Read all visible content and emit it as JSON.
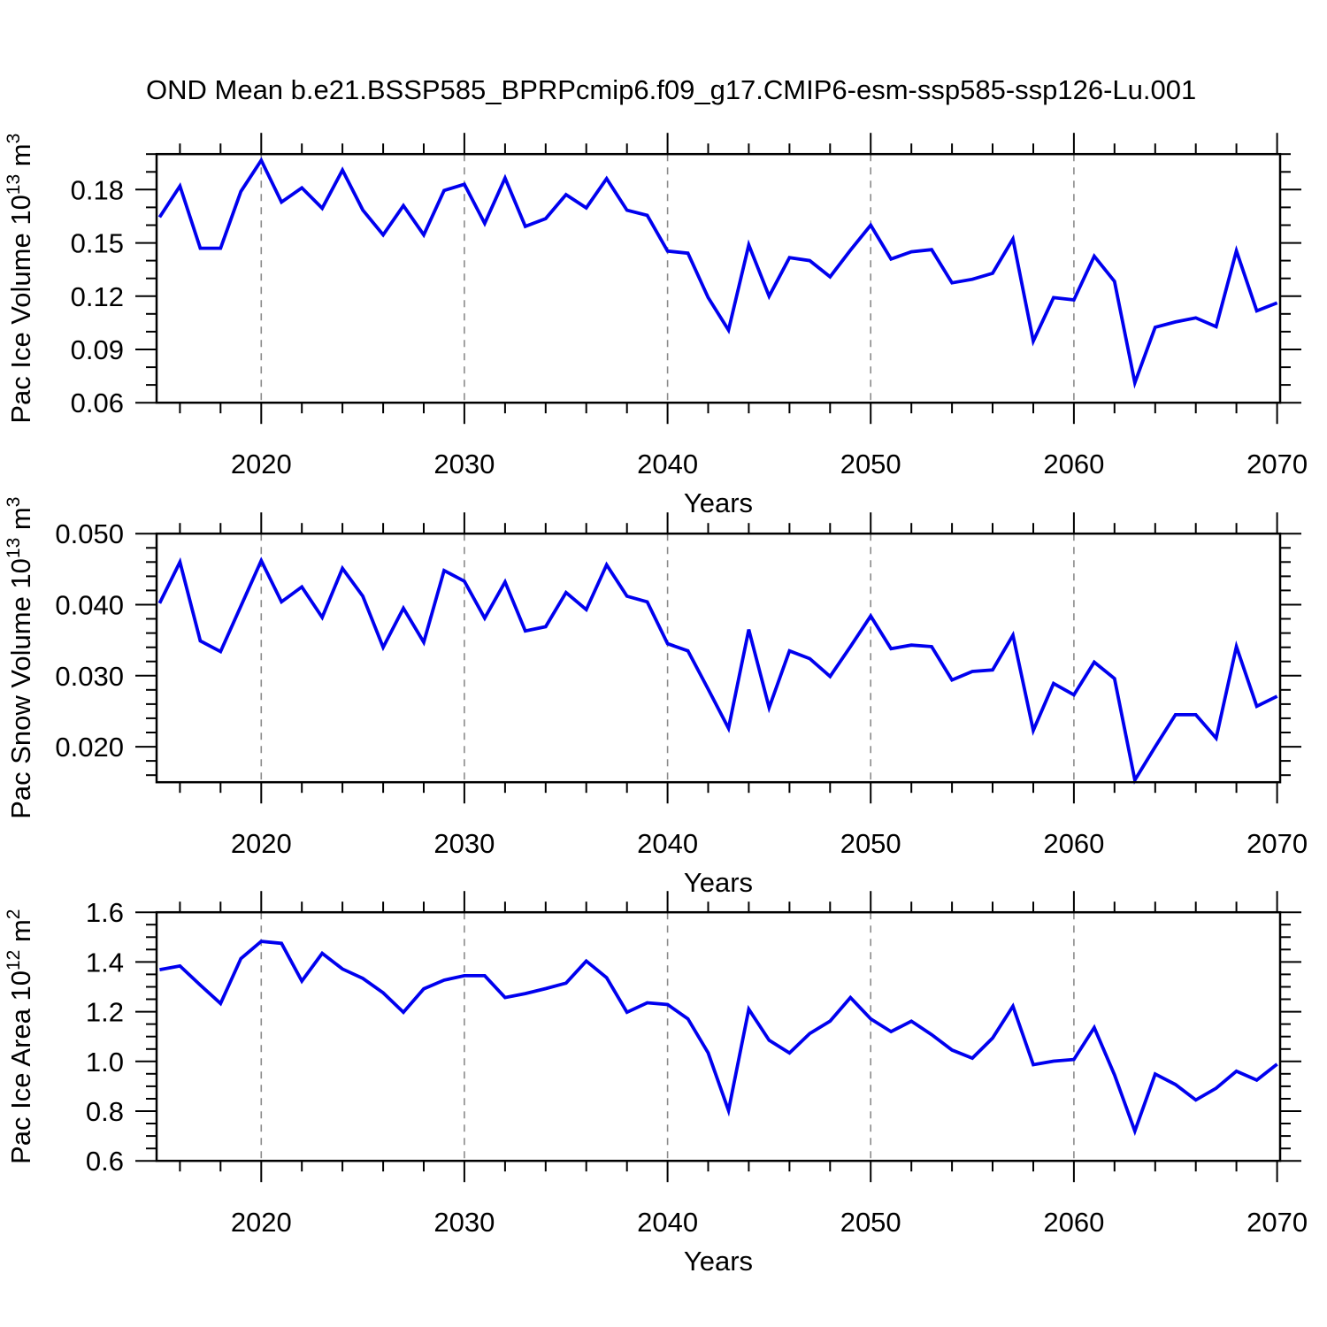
{
  "styles": {
    "line_color": "#0000ee",
    "grid_color": "#8a8a8a",
    "axis_color": "#000000",
    "background": "#ffffff"
  },
  "chart_data": {
    "type": "line",
    "title": "OND Mean b.e21.BSSP585_BPRPcmip6.f09_g17.CMIP6-esm-ssp585-ssp126-Lu.001",
    "x_label": "Years",
    "legend": "none",
    "grid": "vertical-dashed-at-decades",
    "xlim": [
      2014.85,
      2070.15
    ],
    "x_major_ticks": [
      2020,
      2030,
      2040,
      2050,
      2060,
      2070
    ],
    "x_tick_labels": [
      "2020",
      "2030",
      "2040",
      "2050",
      "2060",
      "2070"
    ],
    "x_minor_step": 2,
    "grid_years": [
      2020,
      2030,
      2040,
      2050,
      2060
    ],
    "years": [
      2015,
      2016,
      2017,
      2018,
      2019,
      2020,
      2021,
      2022,
      2023,
      2024,
      2025,
      2026,
      2027,
      2028,
      2029,
      2030,
      2031,
      2032,
      2033,
      2034,
      2035,
      2036,
      2037,
      2038,
      2039,
      2040,
      2041,
      2042,
      2043,
      2044,
      2045,
      2046,
      2047,
      2048,
      2049,
      2050,
      2051,
      2052,
      2053,
      2054,
      2055,
      2056,
      2057,
      2058,
      2059,
      2060,
      2061,
      2062,
      2063,
      2064,
      2065,
      2066,
      2067,
      2068,
      2069,
      2070
    ],
    "panels": [
      {
        "id": "pac-ice-volume",
        "ylabel_text": "Pac Ice Volume 10^13 m^3",
        "ylabel_parts": [
          {
            "t": "Pac Ice Volume 10"
          },
          {
            "t": "13",
            "sup": true
          },
          {
            "t": " m"
          },
          {
            "t": "3",
            "sup": true
          }
        ],
        "ylim": [
          0.06,
          0.2
        ],
        "y_major_ticks": [
          0.06,
          0.09,
          0.12,
          0.15,
          0.18
        ],
        "y_tick_labels": [
          "0.06",
          "0.09",
          "0.12",
          "0.15",
          "0.18"
        ],
        "y_minor_step": 0.01,
        "values": [
          0.1645,
          0.182,
          0.147,
          0.147,
          0.179,
          0.1965,
          0.173,
          0.181,
          0.1695,
          0.191,
          0.1685,
          0.1545,
          0.171,
          0.1545,
          0.1795,
          0.183,
          0.161,
          0.1865,
          0.1593,
          0.1637,
          0.1772,
          0.1697,
          0.1862,
          0.1684,
          0.1655,
          0.1454,
          0.1442,
          0.1192,
          0.1009,
          0.1489,
          0.12,
          0.1417,
          0.14,
          0.1309,
          0.1459,
          0.16,
          0.1409,
          0.145,
          0.1462,
          0.1275,
          0.1295,
          0.1329,
          0.1522,
          0.0947,
          0.1192,
          0.1179,
          0.1425,
          0.1283,
          0.0712,
          0.1025,
          0.1055,
          0.1078,
          0.1028,
          0.1455,
          0.1117,
          0.1162
        ]
      },
      {
        "id": "pac-snow-volume",
        "ylabel_text": "Pac Snow Volume 10^13 m^3",
        "ylabel_parts": [
          {
            "t": "Pac Snow Volume 10"
          },
          {
            "t": "13",
            "sup": true
          },
          {
            "t": " m"
          },
          {
            "t": "3",
            "sup": true
          }
        ],
        "ylim": [
          0.015,
          0.05
        ],
        "y_major_ticks": [
          0.02,
          0.03,
          0.04,
          0.05
        ],
        "y_tick_labels": [
          "0.020",
          "0.030",
          "0.040",
          "0.050"
        ],
        "y_minor_step": 0.002,
        "values": [
          0.0402,
          0.046,
          0.0349,
          0.0334,
          0.0398,
          0.0462,
          0.0404,
          0.0425,
          0.0382,
          0.0451,
          0.0412,
          0.034,
          0.0395,
          0.0347,
          0.0448,
          0.0433,
          0.0381,
          0.0432,
          0.0363,
          0.0369,
          0.0417,
          0.0393,
          0.0456,
          0.0412,
          0.0404,
          0.0345,
          0.0335,
          0.0281,
          0.0226,
          0.0365,
          0.0255,
          0.0335,
          0.0324,
          0.0299,
          0.0341,
          0.0384,
          0.0338,
          0.0343,
          0.0341,
          0.0294,
          0.0306,
          0.0308,
          0.0357,
          0.0223,
          0.0289,
          0.0273,
          0.0319,
          0.0296,
          0.0153,
          0.02,
          0.0245,
          0.0245,
          0.0212,
          0.0341,
          0.0257,
          0.0271
        ]
      },
      {
        "id": "pac-ice-area",
        "ylabel_text": "Pac Ice Area 10^12 m^2",
        "ylabel_parts": [
          {
            "t": "Pac Ice Area 10"
          },
          {
            "t": "12",
            "sup": true
          },
          {
            "t": " m"
          },
          {
            "t": "2",
            "sup": true
          }
        ],
        "ylim": [
          0.6,
          1.6
        ],
        "y_major_ticks": [
          0.6,
          0.8,
          1.0,
          1.2,
          1.4,
          1.6
        ],
        "y_tick_labels": [
          "0.6",
          "0.8",
          "1.0",
          "1.2",
          "1.4",
          "1.6"
        ],
        "y_minor_step": 0.05,
        "values": [
          1.369,
          1.384,
          1.307,
          1.233,
          1.414,
          1.483,
          1.475,
          1.323,
          1.435,
          1.372,
          1.334,
          1.276,
          1.198,
          1.292,
          1.327,
          1.345,
          1.345,
          1.257,
          1.273,
          1.293,
          1.315,
          1.404,
          1.337,
          1.198,
          1.236,
          1.229,
          1.171,
          1.034,
          0.803,
          1.21,
          1.085,
          1.034,
          1.112,
          1.162,
          1.257,
          1.171,
          1.12,
          1.162,
          1.108,
          1.046,
          1.013,
          1.094,
          1.222,
          0.987,
          1.001,
          1.008,
          1.136,
          0.946,
          0.72,
          0.949,
          0.907,
          0.845,
          0.892,
          0.961,
          0.925,
          0.989
        ]
      }
    ]
  }
}
